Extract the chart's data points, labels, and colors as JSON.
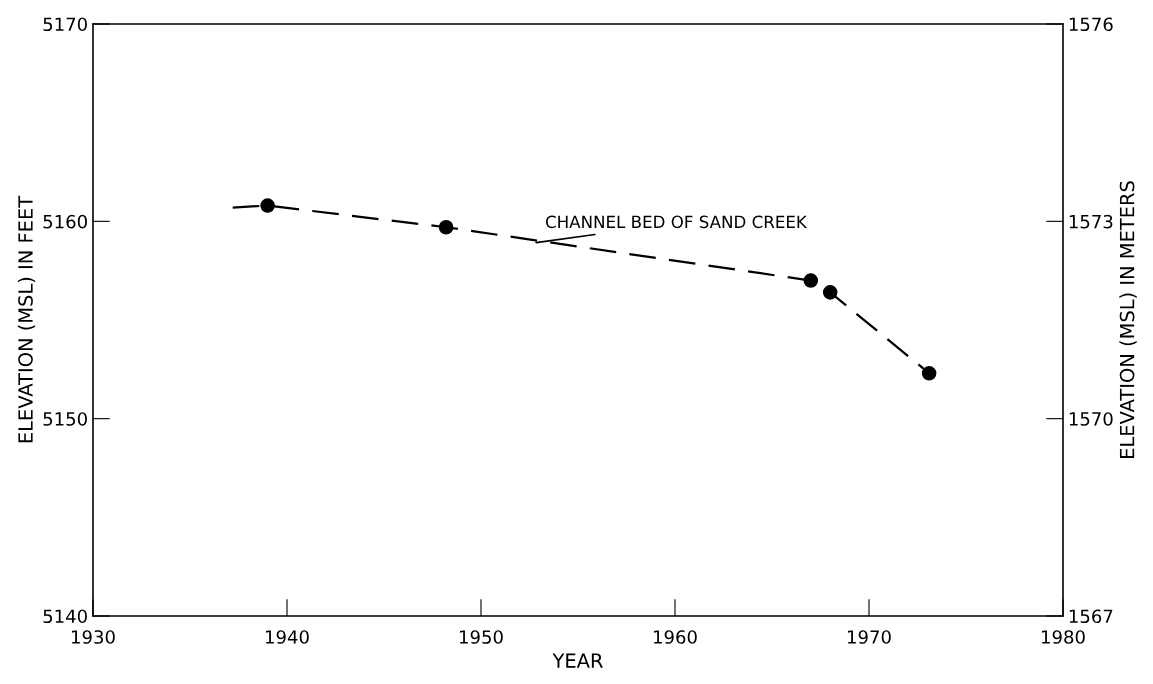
{
  "chart_data": {
    "type": "scatter",
    "xlabel": "YEAR",
    "ylabel": "ELEVATION (MSL) IN FEET",
    "y2label": "ELEVATION (MSL) IN METERS",
    "xlim": [
      1930,
      1980
    ],
    "xticks": [
      1930,
      1940,
      1950,
      1960,
      1970,
      1980
    ],
    "ylim": [
      5140,
      5170
    ],
    "yticks": [
      5140,
      5150,
      5160,
      5170
    ],
    "y2lim": [
      1567,
      1576
    ],
    "y2ticks": [
      1567,
      1570,
      1573,
      1576
    ],
    "grid": false,
    "legend": false,
    "series": [
      {
        "type": "line",
        "line_style": "dashed",
        "marker": "none",
        "color": "#000000",
        "x": [
          1937.2,
          1939,
          1948.2,
          1967,
          1968,
          1973.1
        ],
        "values": [
          5160.7,
          5160.8,
          5159.7,
          5157.0,
          5156.4,
          5152.3
        ]
      },
      {
        "marker": "circle",
        "color": "#000000",
        "x": [
          1939,
          1948.2,
          1967,
          1968,
          1973.1
        ],
        "values": [
          5160.8,
          5159.7,
          5157.0,
          5156.4,
          5152.3
        ]
      }
    ],
    "annotations": [
      {
        "text": "CHANNEL BED OF SAND CREEK",
        "x": 1952.7,
        "y": 5158.9
      }
    ]
  }
}
